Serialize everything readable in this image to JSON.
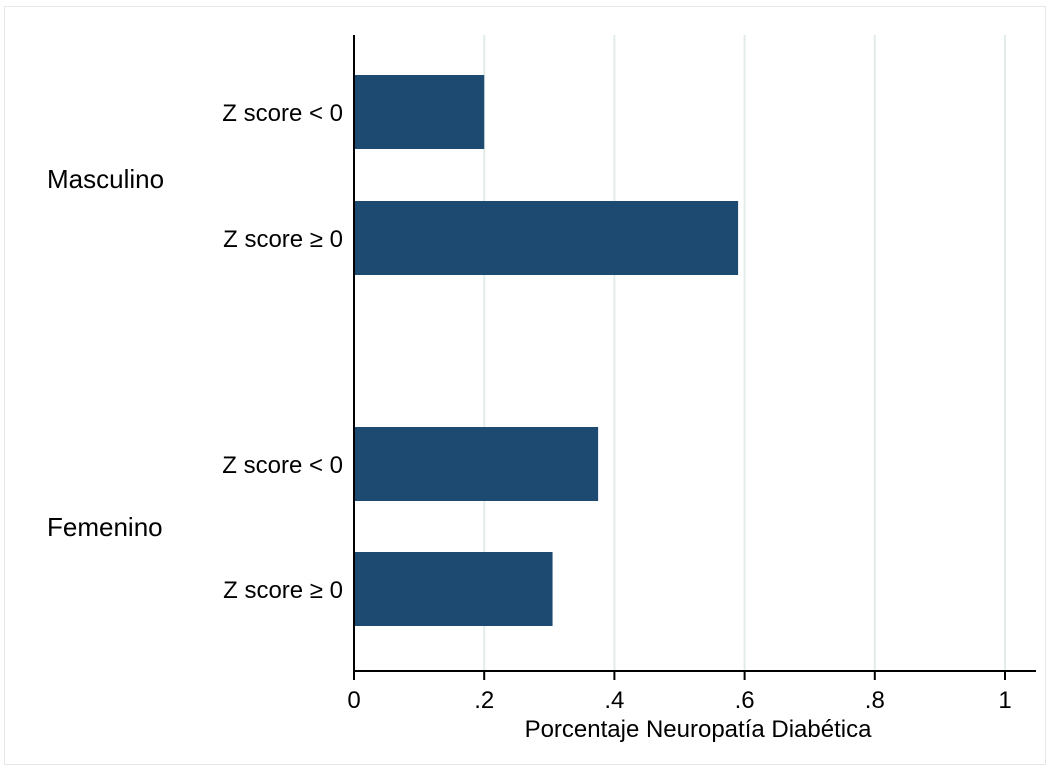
{
  "chart_data": {
    "type": "bar",
    "orientation": "horizontal",
    "xlabel": "Porcentaje Neuropatía Diabética",
    "xlim": [
      0,
      1
    ],
    "xticks": [
      {
        "value": 0,
        "label": "0"
      },
      {
        "value": 0.2,
        "label": ".2"
      },
      {
        "value": 0.4,
        "label": ".4"
      },
      {
        "value": 0.6,
        "label": ".6"
      },
      {
        "value": 0.8,
        "label": ".8"
      },
      {
        "value": 1,
        "label": "1"
      }
    ],
    "grid": true,
    "bar_color": "#1c4a70",
    "grid_color": "#e1ece9",
    "groups": [
      {
        "name": "Masculino",
        "bars": [
          {
            "label": "Z score < 0",
            "value": 0.2
          },
          {
            "label": "Z score ≥ 0",
            "value": 0.59
          }
        ]
      },
      {
        "name": "Femenino",
        "bars": [
          {
            "label": "Z score < 0",
            "value": 0.375
          },
          {
            "label": "Z score ≥ 0",
            "value": 0.305
          }
        ]
      }
    ]
  }
}
